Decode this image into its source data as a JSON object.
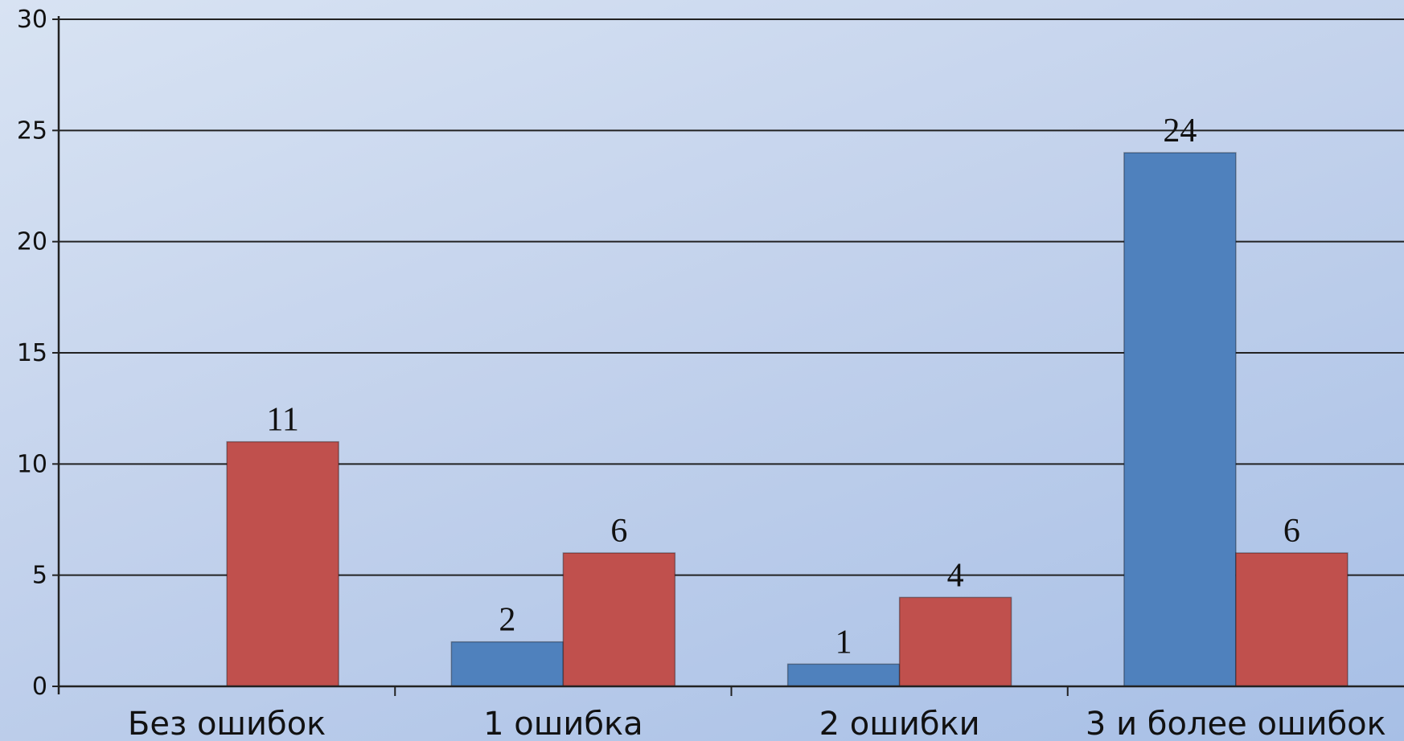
{
  "chart_data": {
    "type": "bar",
    "categories": [
      "Без ошибок",
      "1 ошибка",
      "2 ошибки",
      "3 и более ошибок"
    ],
    "series": [
      {
        "values": [
          0,
          2,
          1,
          24
        ],
        "color": "#4f81bd",
        "labels": [
          "",
          "2",
          "1",
          "24"
        ]
      },
      {
        "values": [
          11,
          6,
          4,
          6
        ],
        "color": "#c0504d",
        "labels": [
          "11",
          "6",
          "4",
          "6"
        ]
      }
    ],
    "y_ticks": [
      "0",
      "5",
      "10",
      "15",
      "20",
      "25",
      "30"
    ],
    "ylim": [
      0,
      30
    ],
    "grid": true,
    "legend": "none"
  }
}
